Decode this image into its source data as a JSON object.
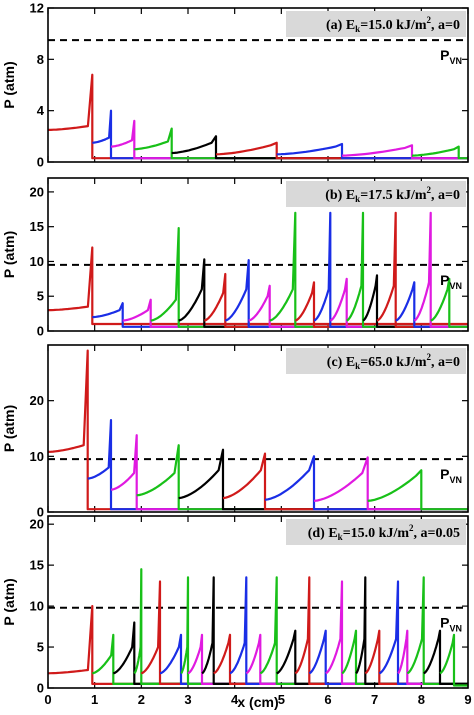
{
  "chart_data": [
    {
      "type": "line",
      "title": "",
      "ylabel": "P (atm)",
      "xlabel": "",
      "annotation": {
        "prefix": "(a) E",
        "sub": "k",
        "value": "=15.0 kJ/m",
        "sup": "2",
        "suffix": ", a=0"
      },
      "xlim": [
        0,
        9
      ],
      "ylim": [
        0,
        12
      ],
      "yticks": [
        "0",
        "4",
        "8",
        "12"
      ],
      "pvn": {
        "label": "P",
        "sub": "VN",
        "value": 9.5
      },
      "series": [
        {
          "color": "#d01a1a",
          "start_x": 0,
          "front_x": 0.95,
          "start_y": 2.5,
          "base_y": 2.8,
          "peak_y": 6.8,
          "floor_y": 0.3
        },
        {
          "color": "#1a2ee6",
          "start_x": 0.95,
          "front_x": 1.35,
          "start_y": 1.5,
          "base_y": 1.9,
          "peak_y": 4.0,
          "floor_y": 0.3
        },
        {
          "color": "#e01ae0",
          "start_x": 1.35,
          "front_x": 1.85,
          "start_y": 1.2,
          "base_y": 1.7,
          "peak_y": 3.2,
          "floor_y": 0.3
        },
        {
          "color": "#18c018",
          "start_x": 1.85,
          "front_x": 2.65,
          "start_y": 1.0,
          "base_y": 1.6,
          "peak_y": 2.6,
          "floor_y": 0.3
        },
        {
          "color": "#000000",
          "start_x": 2.65,
          "front_x": 3.6,
          "start_y": 0.7,
          "base_y": 1.5,
          "peak_y": 2.0,
          "floor_y": 0.3
        },
        {
          "color": "#d01a1a",
          "start_x": 3.6,
          "front_x": 4.9,
          "start_y": 0.6,
          "base_y": 1.3,
          "peak_y": 1.5,
          "floor_y": 0.3
        },
        {
          "color": "#1a2ee6",
          "start_x": 4.9,
          "front_x": 6.3,
          "start_y": 0.6,
          "base_y": 1.2,
          "peak_y": 1.4,
          "floor_y": 0.3
        },
        {
          "color": "#e01ae0",
          "start_x": 6.3,
          "front_x": 7.8,
          "start_y": 0.5,
          "base_y": 1.1,
          "peak_y": 1.3,
          "floor_y": 0.3
        },
        {
          "color": "#18c018",
          "start_x": 7.8,
          "front_x": 8.8,
          "start_y": 0.5,
          "base_y": 1.0,
          "peak_y": 1.2,
          "floor_y": 0.3
        }
      ]
    },
    {
      "type": "line",
      "title": "",
      "ylabel": "P (atm)",
      "xlabel": "",
      "annotation": {
        "prefix": "(b) E",
        "sub": "k",
        "value": "=17.5 kJ/m",
        "sup": "2",
        "suffix": ", a=0"
      },
      "xlim": [
        0,
        9
      ],
      "ylim": [
        0,
        22
      ],
      "yticks": [
        "0",
        "5",
        "10",
        "15",
        "20"
      ],
      "pvn": {
        "label": "P",
        "sub": "VN",
        "value": 9.5
      },
      "series": [
        {
          "color": "#d01a1a",
          "start_x": 0,
          "front_x": 0.95,
          "start_y": 3.0,
          "base_y": 3.5,
          "peak_y": 12.0,
          "floor_y": 1.0
        },
        {
          "color": "#1a2ee6",
          "start_x": 0.95,
          "front_x": 1.6,
          "start_y": 2.0,
          "base_y": 3.0,
          "peak_y": 4.0,
          "floor_y": 0.6
        },
        {
          "color": "#e01ae0",
          "start_x": 1.6,
          "front_x": 2.2,
          "start_y": 1.5,
          "base_y": 3.0,
          "peak_y": 4.5,
          "floor_y": 0.6
        },
        {
          "color": "#18c018",
          "start_x": 2.2,
          "front_x": 2.8,
          "start_y": 1.5,
          "base_y": 4.5,
          "peak_y": 14.8,
          "floor_y": 0.6
        },
        {
          "color": "#000000",
          "start_x": 2.8,
          "front_x": 3.35,
          "start_y": 1.5,
          "base_y": 6.0,
          "peak_y": 10.3,
          "floor_y": 0.6
        },
        {
          "color": "#d01a1a",
          "start_x": 3.35,
          "front_x": 3.8,
          "start_y": 1.5,
          "base_y": 5.5,
          "peak_y": 8.2,
          "floor_y": 0.6
        },
        {
          "color": "#1a2ee6",
          "start_x": 3.8,
          "front_x": 4.3,
          "start_y": 1.5,
          "base_y": 6.0,
          "peak_y": 10.2,
          "floor_y": 0.6
        },
        {
          "color": "#e01ae0",
          "start_x": 4.3,
          "front_x": 4.75,
          "start_y": 1.5,
          "base_y": 5.0,
          "peak_y": 6.5,
          "floor_y": 0.6
        },
        {
          "color": "#18c018",
          "start_x": 4.75,
          "front_x": 5.3,
          "start_y": 1.5,
          "base_y": 6.0,
          "peak_y": 17.0,
          "floor_y": 0.6
        },
        {
          "color": "#d01a1a",
          "start_x": 5.3,
          "front_x": 5.7,
          "start_y": 1.5,
          "base_y": 5.5,
          "peak_y": 7.0,
          "floor_y": 0.6
        },
        {
          "color": "#1a2ee6",
          "start_x": 5.7,
          "front_x": 6.05,
          "start_y": 1.5,
          "base_y": 6.0,
          "peak_y": 17.0,
          "floor_y": 0.6
        },
        {
          "color": "#e01ae0",
          "start_x": 6.05,
          "front_x": 6.4,
          "start_y": 1.5,
          "base_y": 6.0,
          "peak_y": 7.5,
          "floor_y": 0.6
        },
        {
          "color": "#18c018",
          "start_x": 6.4,
          "front_x": 6.75,
          "start_y": 1.5,
          "base_y": 6.5,
          "peak_y": 17.0,
          "floor_y": 0.6
        },
        {
          "color": "#000000",
          "start_x": 6.75,
          "front_x": 7.05,
          "start_y": 1.5,
          "base_y": 6.5,
          "peak_y": 8.0,
          "floor_y": 0.6
        },
        {
          "color": "#d01a1a",
          "start_x": 7.05,
          "front_x": 7.45,
          "start_y": 1.5,
          "base_y": 6.5,
          "peak_y": 17.0,
          "floor_y": 0.6
        },
        {
          "color": "#1a2ee6",
          "start_x": 7.45,
          "front_x": 7.85,
          "start_y": 1.5,
          "base_y": 6.0,
          "peak_y": 7.0,
          "floor_y": 0.6
        },
        {
          "color": "#e01ae0",
          "start_x": 7.85,
          "front_x": 8.2,
          "start_y": 1.5,
          "base_y": 7.0,
          "peak_y": 17.0,
          "floor_y": 0.6
        },
        {
          "color": "#18c018",
          "start_x": 8.2,
          "front_x": 8.6,
          "start_y": 1.5,
          "base_y": 6.0,
          "peak_y": 7.5,
          "floor_y": 0.6
        }
      ]
    },
    {
      "type": "line",
      "title": "",
      "ylabel": "P (atm)",
      "xlabel": "",
      "annotation": {
        "prefix": "(c) E",
        "sub": "k",
        "value": "=65.0 kJ/m",
        "sup": "2",
        "suffix": ", a=0"
      },
      "xlim": [
        0,
        9
      ],
      "ylim": [
        0,
        30
      ],
      "yticks": [
        "0",
        "10",
        "20"
      ],
      "pvn": {
        "label": "P",
        "sub": "VN",
        "value": 9.5
      },
      "series": [
        {
          "color": "#d01a1a",
          "start_x": 0,
          "front_x": 0.85,
          "start_y": 10.8,
          "base_y": 12.0,
          "peak_y": 29.0,
          "floor_y": 0.5
        },
        {
          "color": "#1a2ee6",
          "start_x": 0.85,
          "front_x": 1.35,
          "start_y": 6.0,
          "base_y": 8.0,
          "peak_y": 16.5,
          "floor_y": 0.5
        },
        {
          "color": "#e01ae0",
          "start_x": 1.35,
          "front_x": 1.9,
          "start_y": 4.0,
          "base_y": 7.0,
          "peak_y": 13.8,
          "floor_y": 0.5
        },
        {
          "color": "#18c018",
          "start_x": 1.9,
          "front_x": 2.8,
          "start_y": 3.0,
          "base_y": 7.0,
          "peak_y": 12.0,
          "floor_y": 0.5
        },
        {
          "color": "#000000",
          "start_x": 2.8,
          "front_x": 3.75,
          "start_y": 2.5,
          "base_y": 7.5,
          "peak_y": 11.2,
          "floor_y": 0.5
        },
        {
          "color": "#d01a1a",
          "start_x": 3.75,
          "front_x": 4.65,
          "start_y": 2.5,
          "base_y": 7.5,
          "peak_y": 10.5,
          "floor_y": 0.5
        },
        {
          "color": "#1a2ee6",
          "start_x": 4.65,
          "front_x": 5.7,
          "start_y": 2.2,
          "base_y": 7.5,
          "peak_y": 10.0,
          "floor_y": 0.5
        },
        {
          "color": "#e01ae0",
          "start_x": 5.7,
          "front_x": 6.85,
          "start_y": 2.0,
          "base_y": 7.0,
          "peak_y": 9.8,
          "floor_y": 0.5
        },
        {
          "color": "#18c018",
          "start_x": 6.85,
          "front_x": 8.0,
          "start_y": 2.0,
          "base_y": 6.5,
          "peak_y": 7.5,
          "floor_y": 0.5
        }
      ]
    },
    {
      "type": "line",
      "title": "",
      "ylabel": "P (atm)",
      "xlabel": "x (cm)",
      "annotation": {
        "prefix": "(d) E",
        "sub": "k",
        "value": "=15.0 kJ/m",
        "sup": "2",
        "suffix": ", a=0.05"
      },
      "xlim": [
        0,
        9
      ],
      "ylim": [
        0,
        21
      ],
      "yticks": [
        "0",
        "5",
        "10",
        "15",
        "20"
      ],
      "xticks": [
        "0",
        "1",
        "2",
        "3",
        "4",
        "5",
        "6",
        "7",
        "8",
        "9"
      ],
      "pvn": {
        "label": "P",
        "sub": "VN",
        "value": 9.8
      },
      "series": [
        {
          "color": "#d01a1a",
          "start_x": 0,
          "front_x": 0.95,
          "start_y": 1.8,
          "base_y": 2.2,
          "peak_y": 10.0,
          "floor_y": 0.5
        },
        {
          "color": "#18c018",
          "start_x": 0.95,
          "front_x": 1.4,
          "start_y": 1.8,
          "base_y": 4.0,
          "peak_y": 6.5,
          "floor_y": 0.5
        },
        {
          "color": "#000000",
          "start_x": 1.4,
          "front_x": 1.85,
          "start_y": 1.8,
          "base_y": 5.0,
          "peak_y": 8.0,
          "floor_y": 0.5
        },
        {
          "color": "#18c018",
          "start_x": 1.85,
          "front_x": 2.0,
          "start_y": 1.8,
          "base_y": 5.0,
          "peak_y": 14.5,
          "floor_y": 0.5
        },
        {
          "color": "#d01a1a",
          "start_x": 2.0,
          "front_x": 2.4,
          "start_y": 1.8,
          "base_y": 5.0,
          "peak_y": 13.0,
          "floor_y": 0.5
        },
        {
          "color": "#1a2ee6",
          "start_x": 2.4,
          "front_x": 2.85,
          "start_y": 1.8,
          "base_y": 5.0,
          "peak_y": 6.5,
          "floor_y": 0.5
        },
        {
          "color": "#18c018",
          "start_x": 2.85,
          "front_x": 3.0,
          "start_y": 1.8,
          "base_y": 5.0,
          "peak_y": 13.5,
          "floor_y": 0.5
        },
        {
          "color": "#e01ae0",
          "start_x": 3.0,
          "front_x": 3.3,
          "start_y": 1.8,
          "base_y": 5.0,
          "peak_y": 6.5,
          "floor_y": 0.5
        },
        {
          "color": "#000000",
          "start_x": 3.3,
          "front_x": 3.55,
          "start_y": 1.8,
          "base_y": 5.5,
          "peak_y": 13.5,
          "floor_y": 0.5
        },
        {
          "color": "#d01a1a",
          "start_x": 3.55,
          "front_x": 3.9,
          "start_y": 1.8,
          "base_y": 5.5,
          "peak_y": 6.5,
          "floor_y": 0.5
        },
        {
          "color": "#1a2ee6",
          "start_x": 3.9,
          "front_x": 4.25,
          "start_y": 1.8,
          "base_y": 5.5,
          "peak_y": 13.5,
          "floor_y": 0.5
        },
        {
          "color": "#e01ae0",
          "start_x": 4.25,
          "front_x": 4.55,
          "start_y": 1.8,
          "base_y": 5.5,
          "peak_y": 6.5,
          "floor_y": 0.5
        },
        {
          "color": "#18c018",
          "start_x": 4.55,
          "front_x": 4.9,
          "start_y": 1.8,
          "base_y": 5.5,
          "peak_y": 13.5,
          "floor_y": 0.5
        },
        {
          "color": "#000000",
          "start_x": 4.9,
          "front_x": 5.3,
          "start_y": 1.8,
          "base_y": 6.0,
          "peak_y": 7.0,
          "floor_y": 0.5
        },
        {
          "color": "#d01a1a",
          "start_x": 5.3,
          "front_x": 5.6,
          "start_y": 1.8,
          "base_y": 6.0,
          "peak_y": 13.5,
          "floor_y": 0.5
        },
        {
          "color": "#1a2ee6",
          "start_x": 5.6,
          "front_x": 5.95,
          "start_y": 1.8,
          "base_y": 6.0,
          "peak_y": 7.0,
          "floor_y": 0.5
        },
        {
          "color": "#e01ae0",
          "start_x": 5.95,
          "front_x": 6.3,
          "start_y": 1.8,
          "base_y": 6.0,
          "peak_y": 13.0,
          "floor_y": 0.5
        },
        {
          "color": "#18c018",
          "start_x": 6.3,
          "front_x": 6.6,
          "start_y": 1.8,
          "base_y": 6.0,
          "peak_y": 7.0,
          "floor_y": 0.5
        },
        {
          "color": "#000000",
          "start_x": 6.6,
          "front_x": 6.8,
          "start_y": 1.8,
          "base_y": 6.0,
          "peak_y": 13.5,
          "floor_y": 0.5
        },
        {
          "color": "#d01a1a",
          "start_x": 6.8,
          "front_x": 7.1,
          "start_y": 1.8,
          "base_y": 6.0,
          "peak_y": 7.0,
          "floor_y": 0.5
        },
        {
          "color": "#1a2ee6",
          "start_x": 7.1,
          "front_x": 7.5,
          "start_y": 1.8,
          "base_y": 6.0,
          "peak_y": 13.0,
          "floor_y": 0.5
        },
        {
          "color": "#e01ae0",
          "start_x": 7.5,
          "front_x": 7.7,
          "start_y": 1.8,
          "base_y": 6.0,
          "peak_y": 7.0,
          "floor_y": 0.5
        },
        {
          "color": "#18c018",
          "start_x": 7.7,
          "front_x": 8.05,
          "start_y": 1.8,
          "base_y": 6.0,
          "peak_y": 13.5,
          "floor_y": 0.5
        },
        {
          "color": "#000000",
          "start_x": 8.05,
          "front_x": 8.4,
          "start_y": 1.8,
          "base_y": 6.0,
          "peak_y": 7.0,
          "floor_y": 0.5
        },
        {
          "color": "#18c018",
          "start_x": 8.4,
          "front_x": 8.7,
          "start_y": 1.8,
          "base_y": 5.5,
          "peak_y": 6.5,
          "floor_y": 0.3
        }
      ]
    }
  ]
}
